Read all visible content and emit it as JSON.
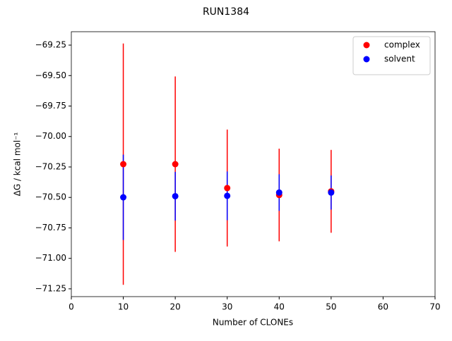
{
  "chart_data": {
    "type": "scatter",
    "title": "RUN1384",
    "xlabel": "Number of CLONEs",
    "ylabel": "ΔG / kcal mol⁻¹",
    "xlim": [
      0,
      70
    ],
    "ylim": [
      -71.314,
      -69.14
    ],
    "xticks": [
      0,
      10,
      20,
      30,
      40,
      50,
      60,
      70
    ],
    "yticks": [
      {
        "value": -69.25,
        "label": "−69.25"
      },
      {
        "value": -69.5,
        "label": "−69.50"
      },
      {
        "value": -69.75,
        "label": "−69.75"
      },
      {
        "value": -70.0,
        "label": "−70.00"
      },
      {
        "value": -70.25,
        "label": "−70.25"
      },
      {
        "value": -70.5,
        "label": "−70.50"
      },
      {
        "value": -70.75,
        "label": "−70.75"
      },
      {
        "value": -71.0,
        "label": "−71.00"
      },
      {
        "value": -71.25,
        "label": "−71.25"
      }
    ],
    "legend": "upper right",
    "series": [
      {
        "name": "complex",
        "color": "#ff0000",
        "x": [
          10,
          20,
          30,
          40,
          50
        ],
        "values": [
          -70.227,
          -70.227,
          -70.423,
          -70.48,
          -70.45
        ],
        "errors": [
          0.99,
          0.72,
          0.48,
          0.38,
          0.34
        ]
      },
      {
        "name": "solvent",
        "color": "#0000ff",
        "x": [
          10,
          20,
          30,
          40,
          50
        ],
        "values": [
          -70.499,
          -70.49,
          -70.487,
          -70.46,
          -70.46
        ],
        "errors": [
          0.35,
          0.2,
          0.2,
          0.15,
          0.14
        ]
      }
    ]
  }
}
